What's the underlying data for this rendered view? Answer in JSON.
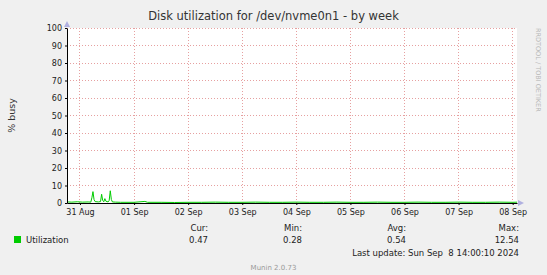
{
  "chart_data": {
    "type": "line",
    "title": "Disk utilization for /dev/nvme0n1 - by week",
    "y_label": "% busy",
    "watermark": "RRDTOOL / TOBI OETIKER",
    "last_update": "Last update: Sun Sep  8 14:00:10 2024",
    "footer": "Munin 2.0.73",
    "x": [
      0.26,
      0.35,
      0.45,
      0.55,
      0.65,
      0.7,
      0.72,
      0.74,
      0.76,
      0.78,
      0.84,
      0.88,
      0.9,
      0.92,
      0.94,
      0.96,
      0.98,
      1.02,
      1.04,
      1.06,
      1.08,
      1.1,
      1.16,
      1.25,
      1.5,
      1.7,
      1.75,
      2.0,
      2.25,
      2.5,
      2.75,
      3.0,
      3.25,
      3.5,
      3.75,
      4.0,
      4.25,
      4.5,
      4.75,
      5.0,
      5.25,
      5.5,
      5.75,
      6.0,
      6.25,
      6.5,
      6.75,
      7.0,
      7.25,
      7.5,
      7.75,
      8.0,
      8.25,
      8.5,
      8.58
    ],
    "series": [
      {
        "name": "Utilization",
        "color": "#00cc00",
        "values": [
          0.6,
          0.5,
          0.7,
          0.5,
          0.6,
          0.5,
          3.0,
          6.5,
          2.0,
          0.8,
          0.6,
          0.8,
          5.0,
          1.5,
          0.7,
          2.5,
          1.0,
          0.6,
          1.5,
          7.0,
          2.0,
          0.6,
          0.5,
          0.4,
          0.4,
          0.9,
          0.4,
          0.4,
          0.3,
          0.4,
          0.4,
          0.5,
          0.4,
          0.4,
          0.5,
          0.4,
          0.4,
          0.5,
          0.4,
          0.4,
          0.5,
          0.4,
          0.4,
          0.5,
          0.4,
          0.4,
          0.5,
          0.4,
          0.4,
          0.5,
          0.4,
          0.4,
          0.5,
          0.4,
          0.47
        ],
        "summary": {
          "labels": [
            "Cur:",
            "Min:",
            "Avg:",
            "Max:"
          ],
          "values": [
            0.47,
            0.28,
            0.54,
            12.54
          ]
        }
      }
    ],
    "xlim": [
      0.26,
      8.58
    ],
    "xticks": [
      {
        "value": 0.5,
        "label": "31 Aug"
      },
      {
        "value": 1.5,
        "label": "01 Sep"
      },
      {
        "value": 2.5,
        "label": "02 Sep"
      },
      {
        "value": 3.5,
        "label": "03 Sep"
      },
      {
        "value": 4.5,
        "label": "04 Sep"
      },
      {
        "value": 5.5,
        "label": "05 Sep"
      },
      {
        "value": 6.5,
        "label": "06 Sep"
      },
      {
        "value": 7.5,
        "label": "07 Sep"
      },
      {
        "value": 8.5,
        "label": "08 Sep"
      }
    ],
    "ylim": [
      0,
      100
    ],
    "yticks": [
      0,
      10,
      20,
      30,
      40,
      50,
      60,
      70,
      80,
      90,
      100
    ],
    "grid": true
  }
}
